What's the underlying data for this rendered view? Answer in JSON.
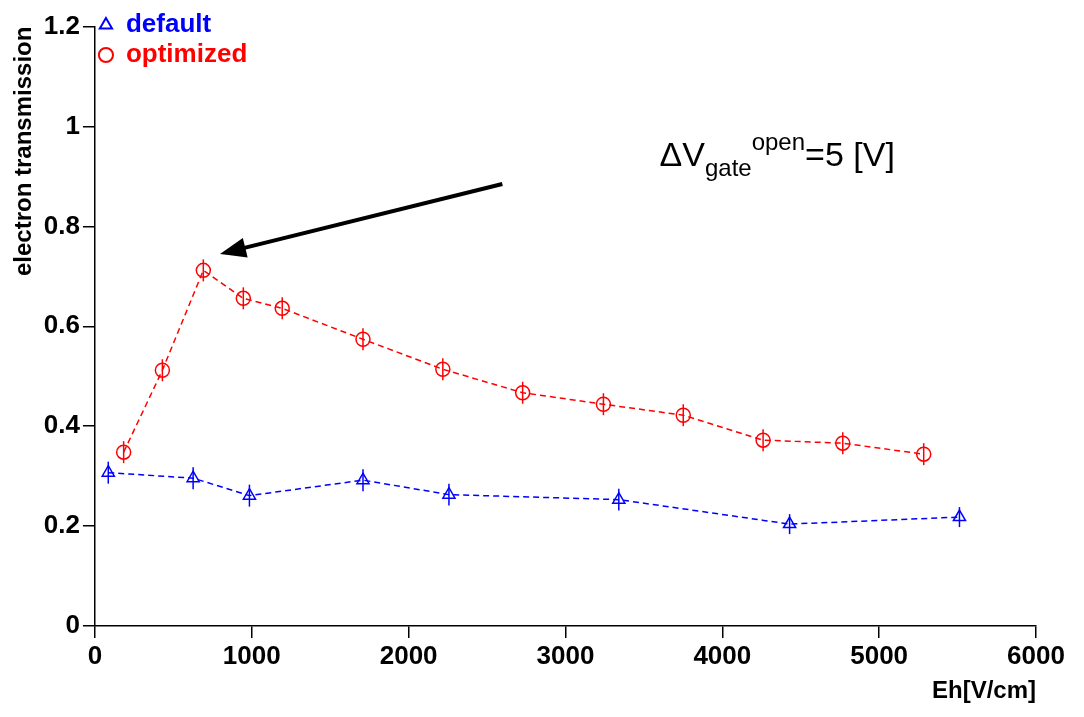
{
  "chart_data": {
    "type": "line",
    "xlabel": "Eh[V/cm]",
    "ylabel": "electron transmission",
    "xlim": [
      0,
      6000
    ],
    "ylim": [
      0,
      1.2
    ],
    "xticks": [
      0,
      1000,
      2000,
      3000,
      4000,
      5000,
      6000
    ],
    "yticks": [
      0,
      0.2,
      0.4,
      0.6,
      0.8,
      1,
      1.2
    ],
    "grid": false,
    "legend": "top left",
    "line_style": "dashed",
    "series": [
      {
        "name": "default",
        "color": "#0000ff",
        "marker": "triangle",
        "x": [
          85,
          626,
          985,
          1709,
          2257,
          3340,
          4429,
          5512
        ],
        "values": [
          0.307,
          0.296,
          0.261,
          0.292,
          0.263,
          0.253,
          0.204,
          0.218
        ],
        "errors": [
          0.022,
          0.022,
          0.022,
          0.022,
          0.022,
          0.022,
          0.02,
          0.02
        ]
      },
      {
        "name": "optimized",
        "color": "#ff0000",
        "marker": "circle",
        "x": [
          183,
          430,
          691,
          946,
          1194,
          1709,
          2218,
          2727,
          3242,
          3751,
          4260,
          4768,
          5284
        ],
        "values": [
          0.348,
          0.512,
          0.712,
          0.656,
          0.636,
          0.574,
          0.514,
          0.467,
          0.444,
          0.422,
          0.372,
          0.366,
          0.344
        ],
        "errors": [
          0.022,
          0.022,
          0.022,
          0.022,
          0.022,
          0.022,
          0.022,
          0.022,
          0.022,
          0.022,
          0.022,
          0.022,
          0.022
        ]
      }
    ],
    "annotations": [
      "ΔV$_{gate}$$^{open}$=5 [V]"
    ]
  }
}
